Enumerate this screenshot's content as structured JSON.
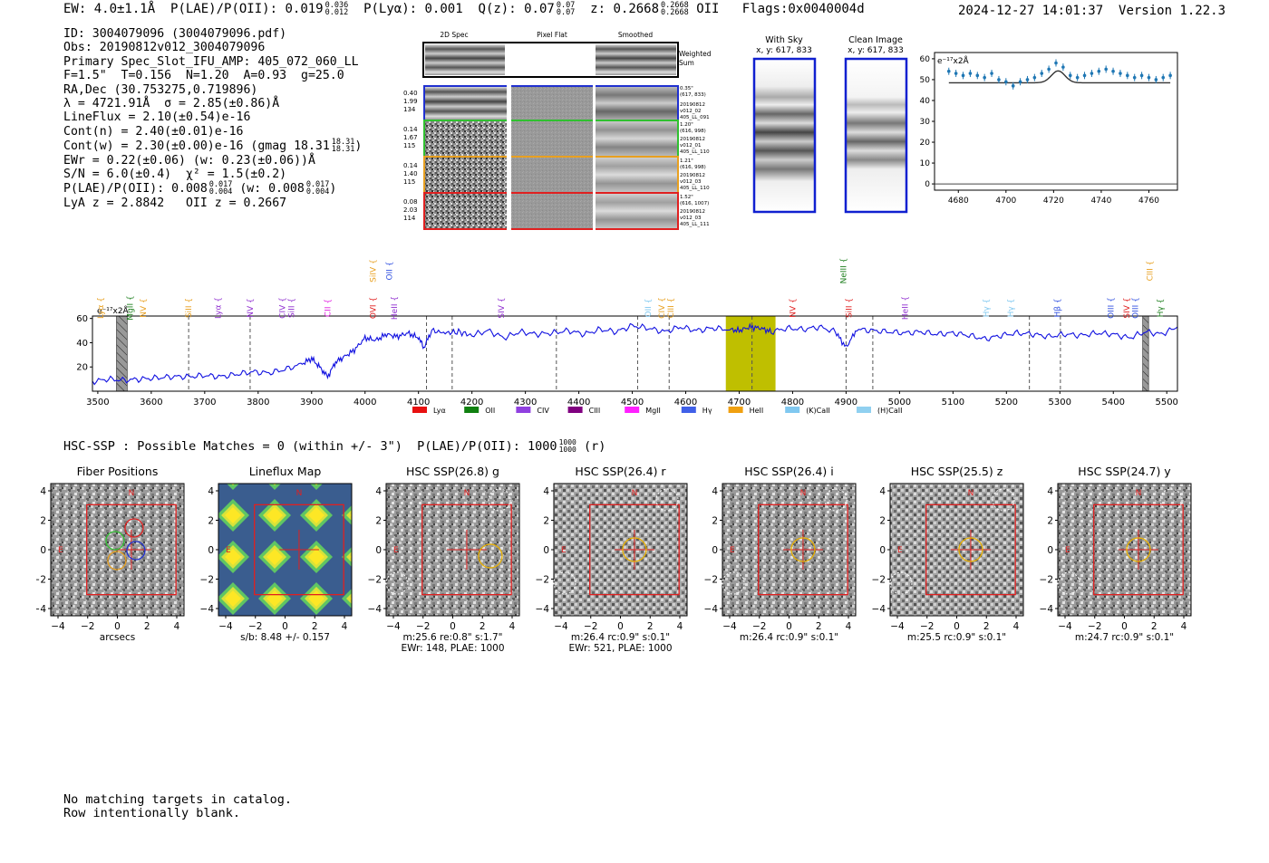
{
  "header": {
    "ew_text": "EW: 4.0±1.1Å",
    "plae_label": "P(LAE)/P(OII):",
    "plae_value": "0.019",
    "plae_hi": "0.036",
    "plae_lo": "0.012",
    "plya_text": "P(Lyα): 0.001",
    "qz_label": "Q(z):",
    "qz_value": "0.07",
    "qz_hi": "0.07",
    "qz_lo": "0.07",
    "z_label": "z:",
    "z_value": "0.2668",
    "z_hi": "0.2668",
    "z_lo": "0.2668",
    "z_line": "OII",
    "flags": "Flags:0x0040004d",
    "datetime": "2024-12-27 14:01:37",
    "version": "Version 1.22.3"
  },
  "info": {
    "id": "ID: 3004079096 (3004079096.pdf)",
    "obs": "Obs: 20190812v012_3004079096",
    "primary": "Primary Spec_Slot_IFU_AMP: 405_072_060_LL",
    "fwhm": "F=1.5\"  T=0.156  N=1.20  A=0.93  g=25.0",
    "radec": "RA,Dec (30.753275,0.719896)",
    "lambda": "λ = 4721.91Å  σ = 2.85(±0.86)Å",
    "lineflux": "LineFlux = 2.10(±0.54)e-16",
    "cont_n": "Cont(n) = 2.40(±0.01)e-16",
    "cont_w": "Cont(w) = 2.30(±0.00)e-16 (gmag 18.31",
    "cont_w_hi": "18.31",
    "cont_w_lo": "18.31",
    "ewr": "EWr = 0.22(±0.06) (w: 0.23(±0.06))Å",
    "sn": "S/N = 6.0(±0.4)  χ² = 1.5(±0.2)",
    "plae_a": "P(LAE)/P(OII): 0.008",
    "plae_a_hi": "0.017",
    "plae_a_lo": "0.004",
    "plae_b": "(w: 0.008",
    "plae_b_hi": "0.017",
    "plae_b_lo": "0.004",
    "lya_z": "LyA z = 2.8842   OII z = 0.2667"
  },
  "spec2d": {
    "columns": [
      "2D Spec",
      "Pixel Flat",
      "Smoothed"
    ],
    "weighted_label": "Weighted",
    "sum_label": "Sum",
    "rows": [
      {
        "left": [
          "0.40",
          "1.99",
          "134"
        ],
        "right": [
          "0.35\"",
          "(617, 833)",
          "20190812",
          "v012_02",
          "405_LL_091"
        ],
        "color": "#2030d0"
      },
      {
        "left": [
          "0.14",
          "1.67",
          "115"
        ],
        "right": [
          "1.20\"",
          "(616, 998)",
          "20190812",
          "v012_01",
          "405_LL_110"
        ],
        "color": "#30c030"
      },
      {
        "left": [
          "0.14",
          "1.40",
          "115"
        ],
        "right": [
          "1.21\"",
          "(616, 998)",
          "20190812",
          "v012_03",
          "405_LL_110"
        ],
        "color": "#e8a020"
      },
      {
        "left": [
          "0.08",
          "2.03",
          "114"
        ],
        "right": [
          "1.52\"",
          "(616, 1007)",
          "20190812",
          "v012_03",
          "405_LL_111"
        ],
        "color": "#e02020"
      }
    ]
  },
  "cutouts": {
    "with_sky_title": "With Sky",
    "with_sky_coords": "x, y: 617, 833",
    "clean_title": "Clean Image",
    "clean_coords": "x, y: 617, 833"
  },
  "zoom_chart": {
    "ylabel": "e⁻¹⁷x2Å",
    "yticks": [
      "60",
      "50",
      "40",
      "30",
      "20",
      "10",
      "0"
    ],
    "xticks": [
      "4680",
      "4700",
      "4720",
      "4740",
      "4760"
    ]
  },
  "chart_data": [
    {
      "type": "scatter",
      "title": "Zoomed line fit",
      "ylabel": "e-17x2Å",
      "xlim": [
        4670,
        4772
      ],
      "ylim": [
        -3,
        63
      ],
      "x": [
        4676,
        4679,
        4682,
        4685,
        4688,
        4691,
        4694,
        4697,
        4700,
        4703,
        4706,
        4709,
        4712,
        4715,
        4718,
        4721,
        4724,
        4727,
        4730,
        4733,
        4736,
        4739,
        4742,
        4745,
        4748,
        4751,
        4754,
        4757,
        4760,
        4763,
        4766,
        4769
      ],
      "values": [
        54,
        53,
        52,
        53,
        52,
        51,
        53,
        50,
        49,
        47,
        49,
        50,
        51,
        53,
        55,
        58,
        56,
        52,
        51,
        52,
        53,
        54,
        55,
        54,
        53,
        52,
        51,
        52,
        51,
        50,
        51,
        52
      ],
      "fit_baseline": 48.5,
      "fit_peak": 54.2,
      "fit_center": 4721.9
    },
    {
      "type": "line",
      "title": "Full spectrum",
      "ylabel": "e-17x2Å",
      "xlim": [
        3490,
        5520
      ],
      "ylim": [
        0,
        62
      ],
      "xticks": [
        3500,
        3600,
        3700,
        3800,
        3900,
        4000,
        4100,
        4200,
        4300,
        4400,
        4500,
        4600,
        4700,
        4800,
        4900,
        5000,
        5100,
        5200,
        5300,
        5400,
        5500
      ],
      "yticks": [
        20,
        40,
        60
      ],
      "x": [
        3490,
        3520,
        3550,
        3580,
        3610,
        3640,
        3670,
        3700,
        3730,
        3760,
        3790,
        3820,
        3850,
        3880,
        3900,
        3915,
        3930,
        3945,
        3960,
        3980,
        4000,
        4020,
        4040,
        4060,
        4080,
        4100,
        4110,
        4125,
        4150,
        4175,
        4200,
        4230,
        4260,
        4290,
        4320,
        4350,
        4380,
        4410,
        4440,
        4470,
        4500,
        4530,
        4560,
        4590,
        4620,
        4650,
        4680,
        4700,
        4720,
        4740,
        4760,
        4790,
        4820,
        4850,
        4880,
        4900,
        4920,
        4950,
        4980,
        5010,
        5040,
        5070,
        5100,
        5130,
        5160,
        5190,
        5220,
        5250,
        5280,
        5310,
        5340,
        5370,
        5400,
        5430,
        5460,
        5490,
        5520
      ],
      "values": [
        8,
        10,
        9,
        10,
        11,
        12,
        12,
        13,
        12,
        14,
        16,
        15,
        18,
        22,
        27,
        20,
        12,
        24,
        28,
        34,
        44,
        42,
        47,
        45,
        48,
        44,
        36,
        50,
        48,
        49,
        46,
        50,
        44,
        49,
        47,
        48,
        50,
        47,
        51,
        49,
        54,
        52,
        49,
        53,
        50,
        52,
        51,
        50,
        53,
        52,
        49,
        52,
        51,
        53,
        49,
        36,
        51,
        50,
        49,
        48,
        49,
        47,
        48,
        46,
        43,
        46,
        48,
        47,
        45,
        47,
        46,
        48,
        47,
        44,
        49,
        47,
        53
      ],
      "highlight_range": [
        4675,
        4768
      ],
      "dashed_lines": [
        3670,
        3785,
        4115,
        4163,
        4358,
        4510,
        4569,
        4724,
        4900,
        4950,
        5243,
        5301
      ],
      "hatched_ranges": [
        [
          3535,
          3555
        ],
        [
          5455,
          5466
        ]
      ],
      "line_labels": [
        {
          "name": "Lyα",
          "x": 3505,
          "color": "#e8a020",
          "level": 1
        },
        {
          "name": "MgII",
          "x": 3560,
          "color": "#208020",
          "level": 1
        },
        {
          "name": "NV",
          "x": 3585,
          "color": "#e8a020",
          "level": 1
        },
        {
          "name": "SiII",
          "x": 3670,
          "color": "#e8a020",
          "level": 1
        },
        {
          "name": "Lyα",
          "x": 3725,
          "color": "#9030d0",
          "level": 1
        },
        {
          "name": "NV",
          "x": 3785,
          "color": "#9030d0",
          "level": 1
        },
        {
          "name": "CIV",
          "x": 3845,
          "color": "#9030d0",
          "level": 1
        },
        {
          "name": "SiII",
          "x": 3862,
          "color": "#9030d0",
          "level": 1
        },
        {
          "name": "CII",
          "x": 3930,
          "color": "#e020e0",
          "level": 1
        },
        {
          "name": "SiIV",
          "x": 4015,
          "color": "#e8a020",
          "level": 2
        },
        {
          "name": "OVI",
          "x": 4015,
          "color": "#e02020",
          "level": 1
        },
        {
          "name": "OII",
          "x": 4045,
          "color": "#3050e0",
          "level": 2
        },
        {
          "name": "HeII",
          "x": 4055,
          "color": "#9030d0",
          "level": 1
        },
        {
          "name": "SIV",
          "x": 4255,
          "color": "#9030d0",
          "level": 1
        },
        {
          "name": "OII",
          "x": 4530,
          "color": "#80c8f0",
          "level": 1
        },
        {
          "name": "CIV",
          "x": 4555,
          "color": "#e8a020",
          "level": 1
        },
        {
          "name": "CIII",
          "x": 4572,
          "color": "#e8a020",
          "level": 1
        },
        {
          "name": "NV",
          "x": 4800,
          "color": "#e02020",
          "level": 1
        },
        {
          "name": "NeIII",
          "x": 4895,
          "color": "#208020",
          "level": 2
        },
        {
          "name": "SiII",
          "x": 4905,
          "color": "#e02020",
          "level": 1
        },
        {
          "name": "HeII",
          "x": 5010,
          "color": "#9030d0",
          "level": 1
        },
        {
          "name": "Hγ",
          "x": 5162,
          "color": "#80c8f0",
          "level": 1
        },
        {
          "name": "Hγ",
          "x": 5208,
          "color": "#80c8f0",
          "level": 1
        },
        {
          "name": "Hβ",
          "x": 5295,
          "color": "#3050e0",
          "level": 1
        },
        {
          "name": "OIII",
          "x": 5395,
          "color": "#3050e0",
          "level": 1
        },
        {
          "name": "SIV",
          "x": 5425,
          "color": "#e02020",
          "level": 1
        },
        {
          "name": "OIII",
          "x": 5441,
          "color": "#3050e0",
          "level": 1
        },
        {
          "name": "CIII",
          "x": 5468,
          "color": "#e8a020",
          "level": 2
        },
        {
          "name": "Hγ",
          "x": 5488,
          "color": "#208020",
          "level": 1
        }
      ],
      "legend": [
        {
          "name": "Lyα",
          "color": "#e81010"
        },
        {
          "name": "OII",
          "color": "#108010"
        },
        {
          "name": "CIV",
          "color": "#9040e0"
        },
        {
          "name": "CIII",
          "color": "#800080"
        },
        {
          "name": "MgII",
          "color": "#ff20ff"
        },
        {
          "name": "Hγ",
          "color": "#4060e8"
        },
        {
          "name": "HeII",
          "color": "#f0a010"
        },
        {
          "name": "(K)CaII",
          "color": "#80c8f0"
        },
        {
          "name": "(H)CaII",
          "color": "#90d0f0"
        }
      ]
    }
  ],
  "spectrum_labels": {
    "ylabel": "e⁻¹⁷x2Å",
    "yticks": [
      "60",
      "40",
      "20"
    ],
    "xticks": [
      "3500",
      "3600",
      "3700",
      "3800",
      "3900",
      "4000",
      "4100",
      "4200",
      "4300",
      "4400",
      "4500",
      "4600",
      "4700",
      "4800",
      "4900",
      "5000",
      "5100",
      "5200",
      "5300",
      "5400",
      "5500"
    ]
  },
  "hsc": {
    "header": "HSC-SSP : Possible Matches = 0 (within +/- 3\")  P(LAE)/P(OII): 1000",
    "header_hi": "1000",
    "header_lo": "1000",
    "header_tail": "(r)",
    "axis_ticks": [
      "4",
      "2",
      "0",
      "−2",
      "−4"
    ],
    "x_ticks": [
      "−4",
      "−2",
      "0",
      "2",
      "4"
    ],
    "n_label": "N",
    "e_label": "E",
    "panels": [
      {
        "title": "Fiber Positions",
        "caption1": "arcsecs",
        "caption2": ""
      },
      {
        "title": "Lineflux Map",
        "caption1": "s/b: 8.48 +/- 0.157",
        "caption2": ""
      },
      {
        "title": "HSC SSP(26.8) g",
        "caption1": "m:25.6  re:0.8\"  s:1.7\"",
        "caption2": "EWr: 148, PLAE: 1000"
      },
      {
        "title": "HSC SSP(26.4) r",
        "caption1": "m:26.4 rc:0.9\"  s:0.1\"",
        "caption2": "EWr: 521, PLAE: 1000"
      },
      {
        "title": "HSC SSP(26.4) i",
        "caption1": "m:26.4 rc:0.9\"  s:0.1\"",
        "caption2": ""
      },
      {
        "title": "HSC SSP(25.5) z",
        "caption1": "m:25.5 rc:0.9\"  s:0.1\"",
        "caption2": ""
      },
      {
        "title": "HSC SSP(24.7) y",
        "caption1": "m:24.7 rc:0.9\"  s:0.1\"",
        "caption2": ""
      }
    ]
  },
  "footer": {
    "line1": "No matching targets in catalog.",
    "line2": "Row intentionally blank."
  }
}
